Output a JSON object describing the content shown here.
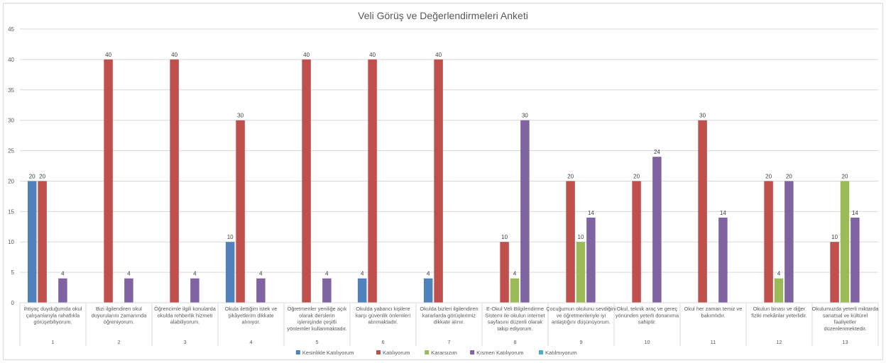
{
  "chart_data": {
    "type": "bar",
    "title": "Veli Görüş ve Değerlendirmeleri Anketi",
    "ylim": [
      0,
      45
    ],
    "yticks": [
      0,
      5,
      10,
      15,
      20,
      25,
      30,
      35,
      40,
      45
    ],
    "grid": true,
    "legend_position": "bottom",
    "categories": [
      "1",
      "2",
      "3",
      "4",
      "5",
      "6",
      "7",
      "8",
      "9",
      "10",
      "11",
      "12",
      "13"
    ],
    "category_descriptions": [
      "İhtiyaç duyduğumda okul çalışanlarıyla rahatlıkla görüşebiliyorum.",
      "Bizi ilgilendiren okul duyurularını zamanında öğreniyorum.",
      "Öğrencimle ilgili konularda okulda rehberlik hizmeti alabiliyorum.",
      "Okula ilettiğim istek ve şikâyetlerim dikkate alınıyor.",
      "Öğretmenler yeniliğe açık olarak derslerin işlenişinde çeşitli yöntemler kullanmaktadır.",
      "Okulda yabancı kişilere karşı güvenlik önlemleri alınmaktadır.",
      "Okulda bizleri ilgilendiren kararlarda görüşlerimiz dikkate alınır.",
      "E-Okul Veli Bilgilendirme Sistemi ile okulun internet sayfasını düzenli olarak takip ediyorum.",
      "Çocuğumun okulunu sevdiğini ve öğretmenleriyle iyi anlaştığını düşünüyorum.",
      "Okul, teknik araç ve gereç yönünden yeterli donanıma sahiptir.",
      "Okul her zaman temiz ve bakımlıdır.",
      "Okulun binası ve diğer fiziki mekânlar yeterlidir.",
      "Okulumuzda yeterli miktarda sanatsal ve kültürel faaliyetler düzenlenmektedir."
    ],
    "series": [
      {
        "name": "Kesinlikle Katılıyorum",
        "color": "#4f81bd",
        "values": [
          20,
          0,
          0,
          10,
          0,
          4,
          4,
          0,
          0,
          0,
          0,
          0,
          0
        ]
      },
      {
        "name": "Katılıyorum",
        "color": "#c0504d",
        "values": [
          20,
          40,
          40,
          30,
          40,
          40,
          40,
          10,
          20,
          20,
          30,
          20,
          10
        ]
      },
      {
        "name": "Kararsızım",
        "color": "#9bbb59",
        "values": [
          0,
          0,
          0,
          0,
          0,
          0,
          0,
          4,
          10,
          0,
          0,
          4,
          20
        ]
      },
      {
        "name": "Kısmen Katılıyorum",
        "color": "#8064a2",
        "values": [
          4,
          4,
          4,
          4,
          4,
          0,
          0,
          30,
          14,
          24,
          14,
          20,
          14
        ]
      },
      {
        "name": "Katılmıyorum",
        "color": "#4bacc6",
        "values": [
          0,
          0,
          0,
          0,
          0,
          0,
          0,
          0,
          0,
          0,
          0,
          0,
          0
        ]
      }
    ]
  }
}
